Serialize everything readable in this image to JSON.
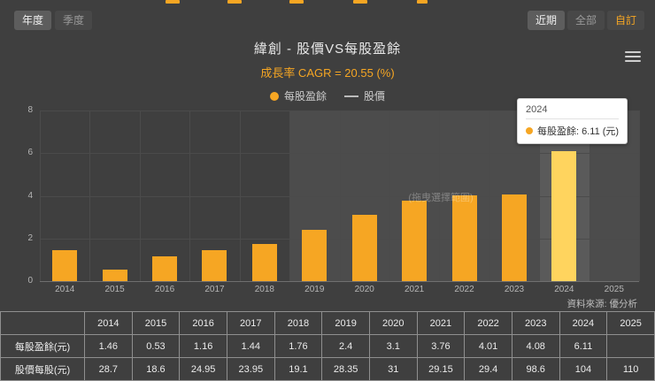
{
  "colors": {
    "background": "#3f3f3f",
    "accent": "#f6a623",
    "bar": "#f6a623",
    "bar_highlight": "#ffd45e"
  },
  "controls": {
    "period_toggle": [
      {
        "label": "年度",
        "active": true
      },
      {
        "label": "季度",
        "active": false
      }
    ],
    "range_toggle": [
      {
        "label": "近期",
        "active": true
      },
      {
        "label": "全部",
        "active": false
      },
      {
        "label": "自訂",
        "active": false
      }
    ]
  },
  "header": {
    "title": "緯創 - 股價VS每股盈餘",
    "subtitle": "成長率 CAGR = 20.55 (%)"
  },
  "legend": [
    {
      "label": "每股盈餘",
      "marker": "dot"
    },
    {
      "label": "股價",
      "marker": "line"
    }
  ],
  "chart_data": {
    "type": "bar",
    "title": "緯創 - 股價VS每股盈餘",
    "categories": [
      "2014",
      "2015",
      "2016",
      "2017",
      "2018",
      "2019",
      "2020",
      "2021",
      "2022",
      "2023",
      "2024",
      "2025"
    ],
    "series": [
      {
        "name": "每股盈餘",
        "type": "bar",
        "unit": "元",
        "values": [
          1.46,
          0.53,
          1.16,
          1.44,
          1.76,
          2.4,
          3.1,
          3.76,
          4.01,
          4.08,
          6.11,
          null
        ]
      },
      {
        "name": "股價",
        "type": "line",
        "unit": "元",
        "visible": false,
        "values": [
          28.7,
          18.6,
          24.95,
          23.95,
          19.1,
          28.35,
          31,
          29.15,
          29.4,
          98.6,
          104,
          110
        ]
      }
    ],
    "ylim": [
      0,
      8
    ],
    "yticks": [
      0,
      2,
      4,
      6,
      8
    ],
    "grid": true,
    "legend_position": "top",
    "highlight_range_start": "2019",
    "hover_category": "2024",
    "watermark": "(拖曳選擇範圍)"
  },
  "tooltip": {
    "title": "2024",
    "series": "每股盈餘",
    "text": "每股盈餘: 6.11 (元)"
  },
  "source": "資料來源: 優分析",
  "table": {
    "header": [
      "",
      "2014",
      "2015",
      "2016",
      "2017",
      "2018",
      "2019",
      "2020",
      "2021",
      "2022",
      "2023",
      "2024",
      "2025"
    ],
    "rows": [
      {
        "label": "每股盈餘(元)",
        "values": [
          "1.46",
          "0.53",
          "1.16",
          "1.44",
          "1.76",
          "2.4",
          "3.1",
          "3.76",
          "4.01",
          "4.08",
          "6.11",
          ""
        ]
      },
      {
        "label": "股價每股(元)",
        "values": [
          "28.7",
          "18.6",
          "24.95",
          "23.95",
          "19.1",
          "28.35",
          "31",
          "29.15",
          "29.4",
          "98.6",
          "104",
          "110"
        ]
      }
    ]
  }
}
